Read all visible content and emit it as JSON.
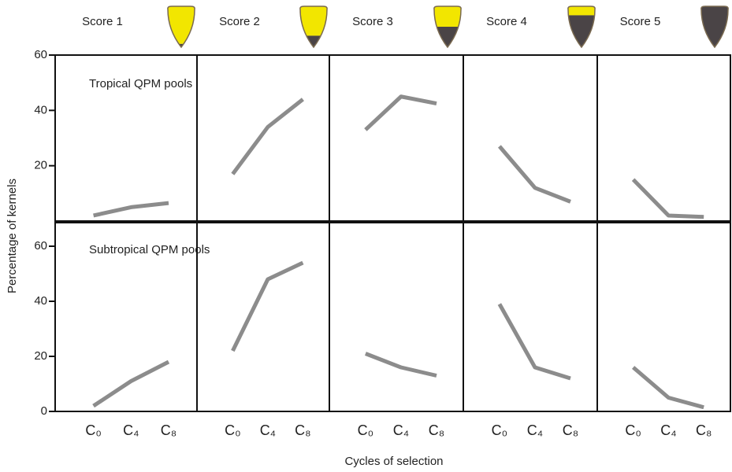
{
  "chart_data": {
    "type": "line",
    "ylabel": "Percentage of kernels",
    "xlabel": "Cycles of selection",
    "columns": [
      "Score 1",
      "Score 2",
      "Score 3",
      "Score 4",
      "Score 5"
    ],
    "categories": [
      "C₀",
      "C₄",
      "C₈"
    ],
    "color": "#8c8c8c",
    "ylim": [
      0,
      60
    ],
    "yticks": [
      0,
      20,
      40,
      60
    ],
    "rows": [
      {
        "name": "Tropical QPM pools",
        "series": [
          {
            "values": [
              2,
              5,
              6.5
            ]
          },
          {
            "values": [
              17,
              34,
              44
            ]
          },
          {
            "values": [
              33,
              45,
              42.5
            ]
          },
          {
            "values": [
              27,
              12,
              7
            ]
          },
          {
            "values": [
              15,
              2,
              1.5
            ]
          }
        ]
      },
      {
        "name": "Subtropical QPM pools",
        "series": [
          {
            "values": [
              2,
              11,
              18
            ]
          },
          {
            "values": [
              22,
              48,
              54
            ]
          },
          {
            "values": [
              21,
              16,
              13
            ]
          },
          {
            "values": [
              39,
              16,
              12
            ]
          },
          {
            "values": [
              16,
              5,
              1.5
            ]
          }
        ]
      }
    ]
  }
}
